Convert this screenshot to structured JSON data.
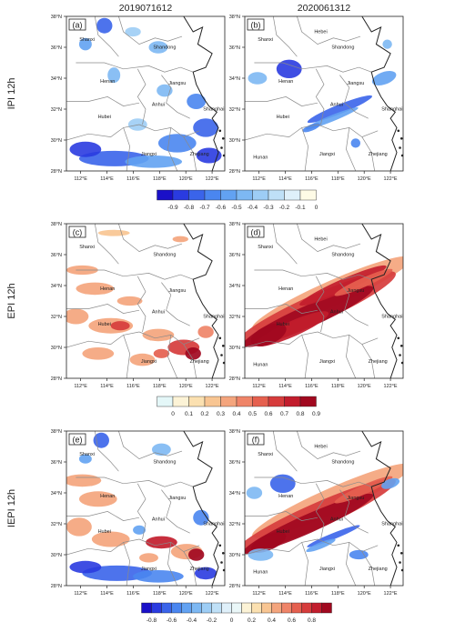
{
  "columns": [
    "2019071612",
    "2020061312"
  ],
  "rows": [
    {
      "label": "IPI 12h",
      "panels": [
        {
          "tag": "(a)"
        },
        {
          "tag": "(b)"
        }
      ]
    },
    {
      "label": "EPI 12h",
      "panels": [
        {
          "tag": "(c)"
        },
        {
          "tag": "(d)"
        }
      ]
    },
    {
      "label": "IEPI 12h",
      "panels": [
        {
          "tag": "(e)"
        },
        {
          "tag": "(f)"
        }
      ]
    }
  ],
  "map": {
    "lat_labels": [
      "38°N",
      "36°N",
      "34°N",
      "32°N",
      "30°N",
      "28°N"
    ],
    "lon_labels": [
      "112°E",
      "114°E",
      "116°E",
      "118°E",
      "120°E",
      "122°E"
    ],
    "provinces": [
      "Hebei",
      "Shanxi",
      "Shandong",
      "Henan",
      "Jiangsu",
      "Anhui",
      "Hubei",
      "Shanghai",
      "Hunan",
      "Jiangxi",
      "Zhejiang"
    ]
  },
  "colorbars": [
    {
      "labels": [
        "-0.9",
        "-0.8",
        "-0.7",
        "-0.6",
        "-0.5",
        "-0.4",
        "-0.3",
        "-0.2",
        "-0.1",
        "0"
      ],
      "colors": [
        "#1a10c8",
        "#2a3be0",
        "#3a64ea",
        "#4a86f0",
        "#62a2f2",
        "#7db8f3",
        "#9dcdf5",
        "#bfe0f7",
        "#dff0fa",
        "#fefbe6"
      ]
    },
    {
      "labels": [
        "0",
        "0.1",
        "0.2",
        "0.3",
        "0.4",
        "0.5",
        "0.6",
        "0.7",
        "0.8",
        "0.9"
      ],
      "colors": [
        "#e4f7f8",
        "#fcf3d6",
        "#fbe0b0",
        "#f8c592",
        "#f4a57d",
        "#ef8468",
        "#e5604f",
        "#d63c3c",
        "#c21d2d",
        "#a1081f"
      ]
    },
    {
      "labels": [
        "-0.8",
        "-0.6",
        "-0.4",
        "-0.2",
        "0",
        "0.2",
        "0.4",
        "0.6",
        "0.8"
      ],
      "colors": [
        "#1a10c8",
        "#2a3be0",
        "#3a64ea",
        "#4a86f0",
        "#62a2f2",
        "#7db8f3",
        "#9dcdf5",
        "#bfe0f7",
        "#dff0fa",
        "#eaf7f8",
        "#fcf3d6",
        "#fbe0b0",
        "#f8c592",
        "#f4a57d",
        "#ef8468",
        "#e5604f",
        "#d63c3c",
        "#c21d2d",
        "#a1081f"
      ]
    }
  ]
}
